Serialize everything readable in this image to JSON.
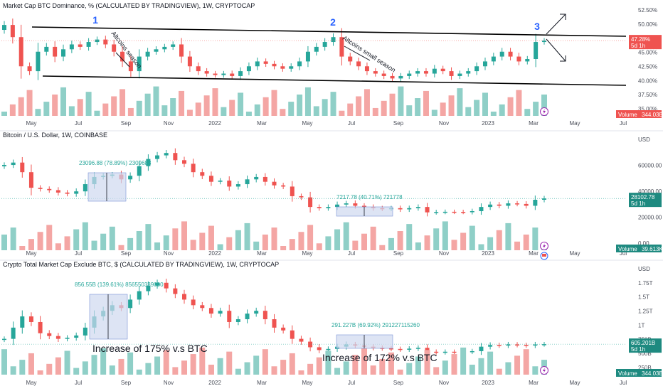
{
  "colors": {
    "up": "#26a69a",
    "down": "#ef5350",
    "vol_up": "#8fcfc7",
    "vol_down": "#f4a6a4",
    "price_tag": "#ef5350",
    "price_tag_green": "#26a69a",
    "box": "#cfd8f0",
    "channel": "#000000"
  },
  "x_ticks": [
    "May",
    "Jul",
    "Sep",
    "Nov",
    "2022",
    "Mar",
    "May",
    "Jul",
    "Sep",
    "Nov",
    "2023",
    "Mar",
    "May",
    "Jul"
  ],
  "icons": [
    "lightning-icon",
    "flag-icon"
  ],
  "chart_data": [
    {
      "type": "candlestick",
      "title": "Market Cap BTC Dominance, % (CALCULATED BY TRADINGVIEW), 1W, CRYPTOCAP",
      "y_unit": "%",
      "ylim": [
        34,
        53
      ],
      "y_ticks": [
        "52.50%",
        "50.00%",
        "47.50%",
        "45.00%",
        "42.50%",
        "40.00%",
        "37.50%",
        "35.00%"
      ],
      "price_tag": {
        "value": "47.28%",
        "sub": "5d 1h"
      },
      "volume_tag": {
        "label": "Volume",
        "value": "344.03B"
      },
      "series_close": [
        50.5,
        48,
        42,
        41,
        45,
        46,
        44,
        45.5,
        46.5,
        46,
        47,
        47.5,
        46.5,
        45,
        43,
        41,
        44,
        45,
        45.5,
        46,
        46.5,
        44,
        42,
        41,
        40.5,
        40.2,
        40.5,
        40,
        41,
        42,
        43,
        42.5,
        42,
        41.5,
        42,
        43,
        45,
        46,
        47,
        48,
        44,
        43,
        42,
        41,
        40.5,
        40,
        39.5,
        40,
        40.5,
        41,
        40.5,
        41.5,
        41,
        40,
        40.5,
        41,
        42,
        43,
        44,
        45,
        44,
        43,
        43.5,
        47,
        47.28
      ],
      "annotations": [
        "1",
        "2",
        "3",
        "Altcoins season",
        "Altcoins small season"
      ]
    },
    {
      "type": "candlestick",
      "title": "Bitcoin / U.S. Dollar, 1W, COINBASE",
      "y_unit": "USD",
      "ylim": [
        -5000,
        75000
      ],
      "y_ticks": [
        "USD",
        "60000.00",
        "40000.00",
        "20000.00",
        "0.00"
      ],
      "price_tag": {
        "value": "28102.78",
        "sub": "5d 1h"
      },
      "volume_tag": {
        "label": "Volume",
        "value": "39.613K"
      },
      "series_close": [
        56000,
        58000,
        50000,
        37000,
        36000,
        35000,
        33000,
        32000,
        34000,
        40000,
        46000,
        47000,
        48000,
        44000,
        47000,
        55000,
        61000,
        64000,
        66000,
        60000,
        57000,
        50000,
        47000,
        42000,
        43000,
        38000,
        40000,
        44000,
        46000,
        42000,
        39000,
        38000,
        30000,
        29000,
        21000,
        20000,
        21000,
        23000,
        24000,
        22000,
        21000,
        20000,
        19500,
        20000,
        19000,
        20000,
        21000,
        16500,
        16800,
        17000,
        16900,
        16800,
        17500,
        21000,
        23000,
        22000,
        24000,
        23500,
        22000,
        27000,
        28102
      ],
      "measurements": [
        {
          "label": "23096.88 (78.89%) 2309688"
        },
        {
          "label": "7217.78 (40.71%) 721778"
        }
      ]
    },
    {
      "type": "candlestick",
      "title": "Crypto Total Market Cap Exclude BTC, $ (CALCULATED BY TRADINGVIEW), 1W, CRYPTOCAP",
      "y_unit": "USD",
      "ylim": [
        150,
        1900
      ],
      "y_ticks": [
        "USD",
        "1.75T",
        "1.5T",
        "1.25T",
        "1T",
        "750B",
        "500B",
        "250B"
      ],
      "price_tag": {
        "value": "605.201B",
        "sub": "5d 1h"
      },
      "volume_tag": {
        "label": "Volume",
        "value": "344.03B"
      },
      "series_close": [
        700,
        900,
        1100,
        1000,
        800,
        750,
        700,
        720,
        760,
        900,
        1100,
        1200,
        1300,
        1250,
        1400,
        1550,
        1650,
        1700,
        1600,
        1500,
        1400,
        1300,
        1250,
        1150,
        1200,
        1000,
        1050,
        1150,
        1200,
        1050,
        900,
        850,
        700,
        650,
        550,
        500,
        520,
        560,
        600,
        580,
        560,
        540,
        530,
        520,
        510,
        525,
        540,
        470,
        460,
        470,
        465,
        470,
        480,
        560,
        590,
        580,
        600,
        590,
        580,
        600,
        605
      ],
      "measurements": [
        {
          "label": "856.55B (139.61%) 856550339000"
        },
        {
          "label": "291.227B (69.92%) 291227115260"
        }
      ],
      "annotations": [
        "Increase of 175% v.s BTC",
        "Increase of 172% v.s BTC"
      ]
    }
  ]
}
